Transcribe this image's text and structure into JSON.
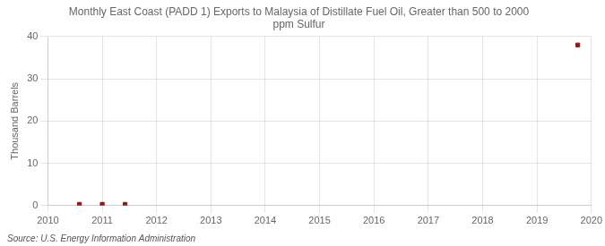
{
  "chart_data": {
    "type": "scatter",
    "title": "Monthly East Coast (PADD 1) Exports to Malaysia of Distillate Fuel Oil, Greater than 500 to 2000\nppm Sulfur",
    "y_label": "Thousand Barrels",
    "annotations": [
      "Source: U.S. Energy Information Administration"
    ],
    "x": [
      2010.58,
      2011.0,
      2011.42,
      2019.75
    ],
    "values": [
      0.3,
      0.3,
      0.3,
      38
    ],
    "color": "#8b1a1a",
    "marker": "square",
    "xlim": [
      2010,
      2020
    ],
    "xticks": [
      2010,
      2011,
      2012,
      2013,
      2014,
      2015,
      2016,
      2017,
      2018,
      2019,
      2020
    ],
    "ylim": [
      0,
      40
    ],
    "yticks": [
      0,
      10,
      20,
      30,
      40
    ],
    "grid": true
  }
}
